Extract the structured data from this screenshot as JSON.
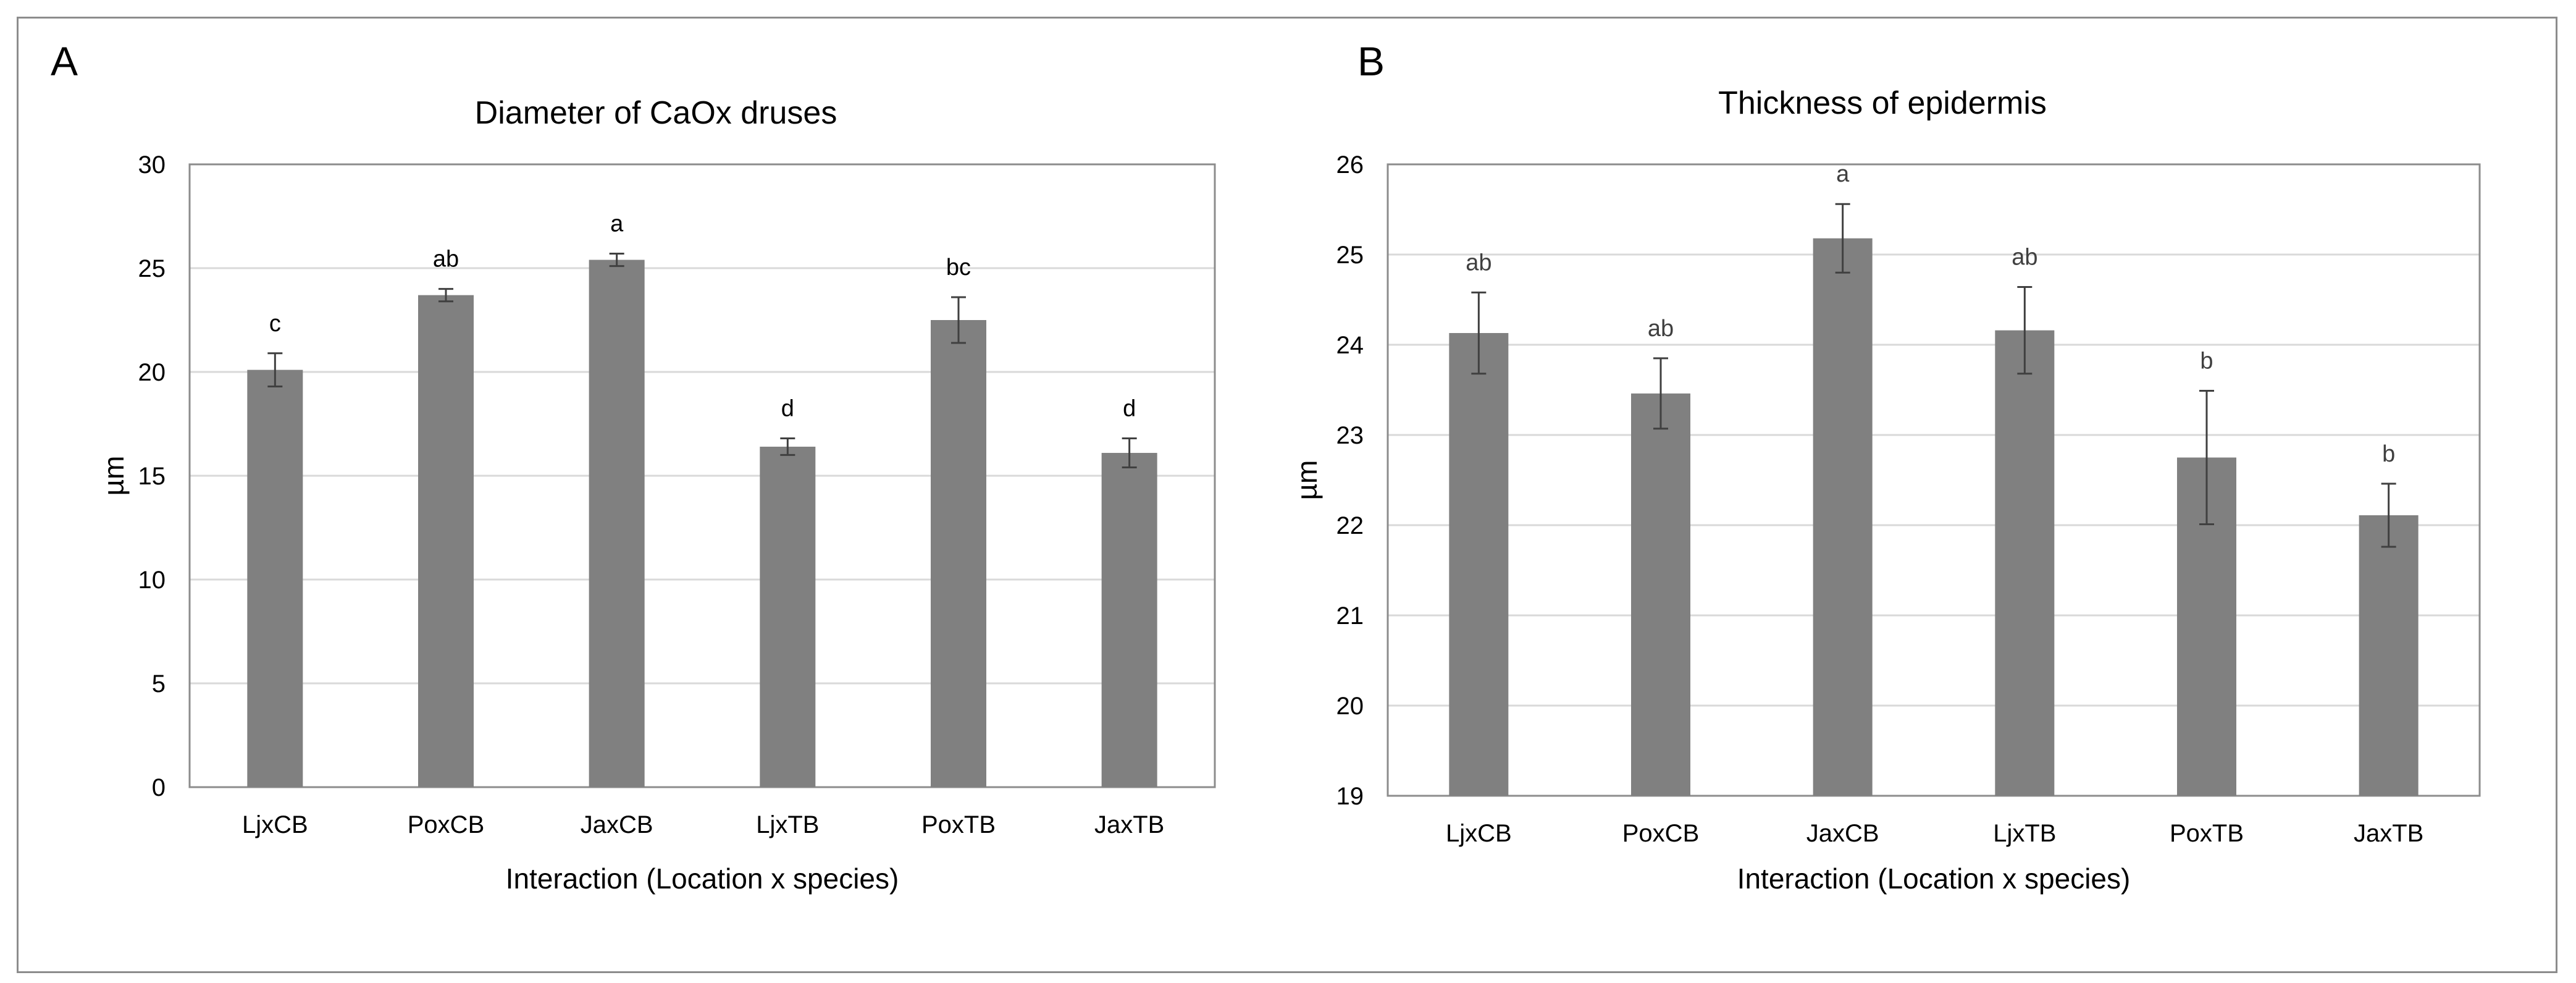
{
  "figure": {
    "panels": [
      "A",
      "B"
    ]
  },
  "chart_data": [
    {
      "type": "bar",
      "panel": "A",
      "title": "Diameter of CaOx druses",
      "xlabel": "Interaction (Location x species)",
      "ylabel": "µm",
      "categories": [
        "LjxCB",
        "PoxCB",
        "JaxCB",
        "LjxTB",
        "PoxTB",
        "JaxTB"
      ],
      "values": [
        20.1,
        23.7,
        25.4,
        16.4,
        22.5,
        16.1
      ],
      "error": [
        0.8,
        0.3,
        0.3,
        0.4,
        1.1,
        0.7
      ],
      "labels": [
        "c",
        "ab",
        "a",
        "d",
        "bc",
        "d"
      ],
      "ylim": [
        0,
        30
      ],
      "yticks": [
        0,
        5,
        10,
        15,
        20,
        25,
        30
      ],
      "grid": true,
      "bar_color": "#808080"
    },
    {
      "type": "bar",
      "panel": "B",
      "title": "Thickness of epidermis",
      "xlabel": "Interaction (Location x species)",
      "ylabel": "µm",
      "categories": [
        "LjxCB",
        "PoxCB",
        "JaxCB",
        "LjxTB",
        "PoxTB",
        "JaxTB"
      ],
      "values": [
        24.13,
        23.46,
        25.18,
        24.16,
        22.75,
        22.11
      ],
      "error": [
        0.45,
        0.39,
        0.38,
        0.48,
        0.74,
        0.35
      ],
      "labels": [
        "ab",
        "ab",
        "a",
        "ab",
        "b",
        "b"
      ],
      "ylim": [
        19,
        26
      ],
      "yticks": [
        19,
        20,
        21,
        22,
        23,
        24,
        25,
        26
      ],
      "grid": true,
      "bar_color": "#808080"
    }
  ]
}
